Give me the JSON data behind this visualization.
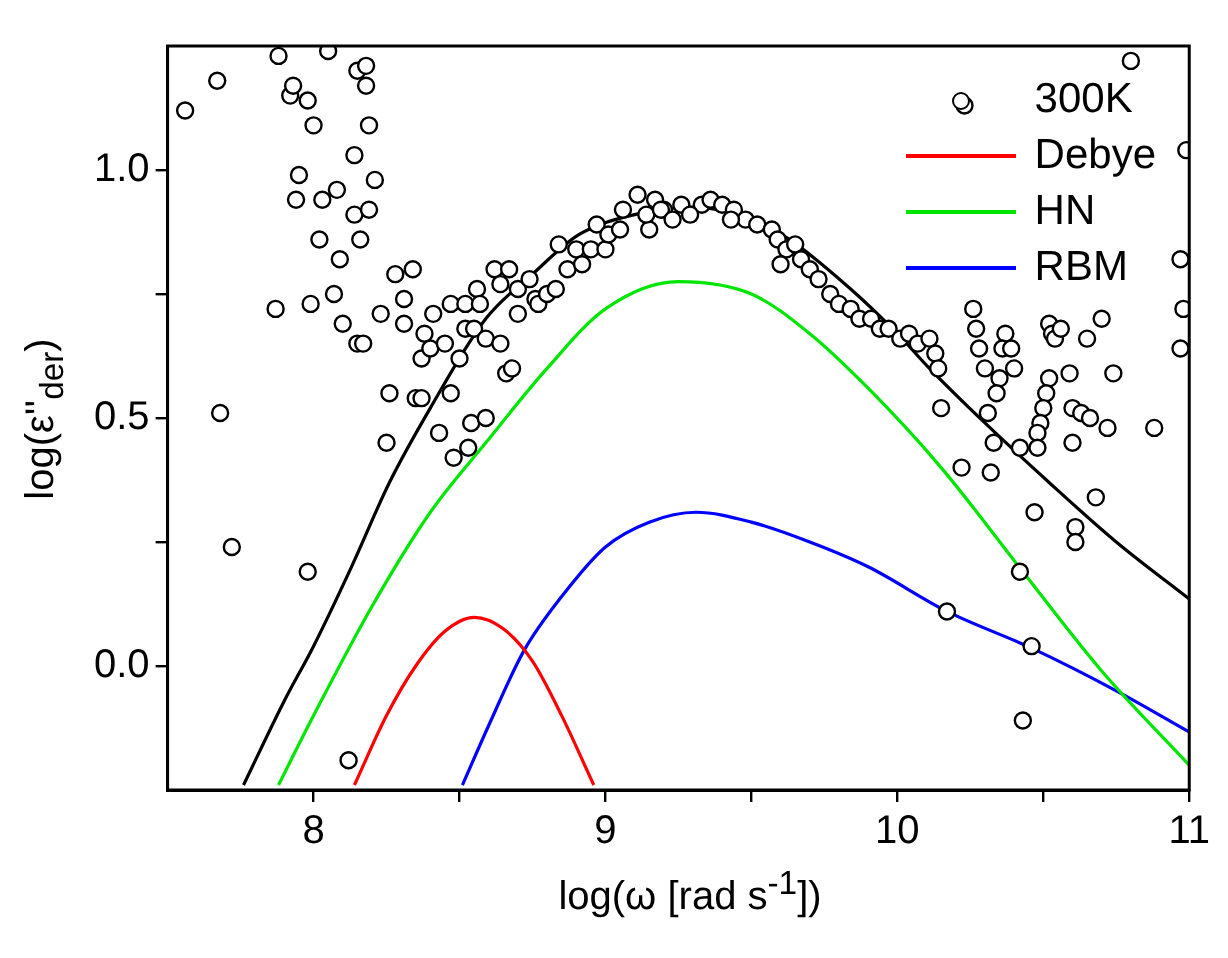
{
  "chart_data": {
    "type": "scatter",
    "xlabel": "log(ω [rad s$^{-1}$])",
    "ylabel": "log(ε''$_{der}$)",
    "xlim": [
      7.5,
      11
    ],
    "ylim": [
      -0.25,
      1.25
    ],
    "xticks": [
      8,
      {
        "value": 8.5,
        "label": null
      },
      9,
      {
        "value": 9.5,
        "label": null
      },
      10,
      {
        "value": 10.5,
        "label": null
      },
      11
    ],
    "yticks": [
      {
        "value": 0,
        "label": "0.0"
      },
      {
        "value": 0.25,
        "label": null
      },
      {
        "value": 0.5,
        "label": "0.5"
      },
      {
        "value": 0.75,
        "label": null
      },
      {
        "value": 1,
        "label": "1.0"
      }
    ],
    "legend": "top right",
    "series": [
      {
        "type": "line",
        "color": "#000000",
        "marker": "none",
        "x": [
          7.76,
          7.9,
          8.0,
          8.13,
          8.26,
          8.4,
          8.59,
          8.75,
          8.91,
          9.1,
          9.3,
          9.5,
          9.63,
          9.84,
          10.0,
          10.11,
          10.3,
          10.52,
          10.75,
          11.0
        ],
        "values": [
          -0.24,
          -0.07,
          0.04,
          0.2,
          0.37,
          0.52,
          0.7,
          0.79,
          0.87,
          0.91,
          0.925,
          0.9,
          0.86,
          0.76,
          0.67,
          0.6,
          0.49,
          0.37,
          0.25,
          0.135
        ]
      },
      {
        "type": "line",
        "name": "Debye",
        "color": "#ff0000",
        "marker": "none",
        "x": [
          8.14,
          8.25,
          8.35,
          8.45,
          8.55,
          8.65,
          8.75,
          8.85,
          8.96
        ],
        "values": [
          -0.24,
          -0.1,
          0.0,
          0.07,
          0.098,
          0.075,
          0.01,
          -0.1,
          -0.24
        ]
      },
      {
        "type": "line",
        "name": "HN",
        "color": "#00e600",
        "marker": "none",
        "x": [
          7.88,
          8.0,
          8.2,
          8.4,
          8.59,
          8.8,
          9.0,
          9.25,
          9.5,
          9.7,
          9.9,
          10.15,
          10.43,
          10.7,
          11.0
        ],
        "values": [
          -0.24,
          -0.1,
          0.12,
          0.31,
          0.45,
          0.6,
          0.72,
          0.775,
          0.75,
          0.67,
          0.56,
          0.4,
          0.19,
          -0.01,
          -0.2
        ]
      },
      {
        "type": "line",
        "name": "RBM",
        "color": "#0000ff",
        "marker": "none",
        "x": [
          8.51,
          8.6,
          8.72,
          8.85,
          9.0,
          9.15,
          9.31,
          9.5,
          9.7,
          9.9,
          10.17,
          10.46,
          10.75,
          11.0
        ],
        "values": [
          -0.24,
          -0.12,
          0.03,
          0.14,
          0.24,
          0.29,
          0.31,
          0.29,
          0.25,
          0.2,
          0.11,
          0.036,
          -0.05,
          -0.133
        ]
      },
      {
        "type": "scatter",
        "name": "300K",
        "color": "#000000",
        "marker": "circle",
        "x": [
          7.56,
          7.67,
          7.68,
          7.87,
          7.88,
          7.92,
          7.93,
          7.98,
          8.0,
          8.05,
          7.95,
          7.94,
          8.02,
          8.03,
          8.08,
          8.09,
          7.99,
          8.07,
          8.1,
          8.14,
          8.14,
          8.16,
          8.19,
          8.21,
          8.19,
          8.15,
          8.18,
          8.18,
          8.15,
          8.17,
          8.23,
          8.26,
          8.25,
          8.28,
          8.31,
          8.34,
          8.31,
          8.35,
          8.37,
          8.37,
          8.38,
          8.4,
          8.41,
          8.45,
          8.43,
          8.48,
          8.53,
          8.47,
          8.5,
          8.54,
          8.59,
          8.47,
          8.52,
          8.52,
          8.56,
          8.57,
          8.55,
          8.59,
          8.62,
          8.67,
          8.64,
          8.66,
          8.68,
          8.7,
          8.64,
          8.7,
          8.74,
          8.76,
          8.77,
          8.8,
          8.83,
          8.84,
          8.87,
          8.9,
          8.92,
          8.95,
          8.97,
          9.0,
          9.01,
          9.05,
          9.06,
          9.11,
          9.15,
          9.17,
          9.14,
          9.2,
          9.19,
          9.26,
          9.33,
          9.36,
          9.4,
          9.44,
          9.48,
          9.52,
          9.57,
          9.59,
          9.62,
          9.65,
          9.67,
          9.7,
          9.73,
          9.77,
          9.8,
          9.84,
          9.87,
          9.91,
          9.94,
          9.97,
          10.01,
          10.04,
          10.07,
          10.11,
          10.13,
          10.14,
          9.23,
          9.29,
          9.43,
          9.6,
          10.8,
          10.23,
          10.99,
          10.97,
          10.98,
          10.97,
          10.26,
          10.27,
          10.37,
          10.28,
          10.36,
          10.39,
          10.4,
          10.3,
          10.35,
          10.34,
          10.31,
          10.52,
          10.53,
          10.54,
          10.56,
          10.7,
          10.65,
          10.59,
          10.74,
          10.52,
          10.51,
          10.5,
          10.49,
          10.48,
          10.48,
          10.42,
          10.33,
          10.15,
          10.22,
          10.32,
          10.6,
          10.63,
          10.66,
          10.72,
          10.6,
          10.88,
          10.68,
          10.47,
          10.61,
          10.61,
          10.42,
          10.17,
          10.46,
          10.43,
          7.72,
          7.98,
          8.12
        ],
        "values": [
          1.12,
          1.18,
          0.51,
          0.72,
          1.23,
          1.15,
          1.17,
          1.14,
          1.09,
          1.24,
          0.99,
          0.94,
          0.86,
          0.94,
          0.96,
          0.82,
          0.73,
          0.75,
          0.69,
          1.03,
          0.91,
          0.86,
          0.92,
          0.98,
          1.09,
          1.2,
          1.21,
          1.17,
          0.65,
          0.65,
          0.71,
          0.55,
          0.45,
          0.79,
          0.74,
          0.8,
          0.69,
          0.54,
          0.54,
          0.62,
          0.67,
          0.64,
          0.71,
          0.65,
          0.47,
          0.42,
          0.44,
          0.55,
          0.62,
          0.49,
          0.5,
          0.73,
          0.73,
          0.68,
          0.76,
          0.73,
          0.68,
          0.66,
          0.8,
          0.8,
          0.65,
          0.59,
          0.6,
          0.71,
          0.77,
          0.76,
          0.78,
          0.74,
          0.73,
          0.75,
          0.76,
          0.85,
          0.8,
          0.84,
          0.81,
          0.84,
          0.89,
          0.84,
          0.87,
          0.88,
          0.92,
          0.95,
          0.88,
          0.94,
          0.91,
          0.92,
          0.92,
          0.93,
          0.93,
          0.94,
          0.93,
          0.92,
          0.9,
          0.89,
          0.88,
          0.86,
          0.84,
          0.85,
          0.82,
          0.8,
          0.78,
          0.75,
          0.73,
          0.72,
          0.7,
          0.7,
          0.68,
          0.68,
          0.66,
          0.67,
          0.65,
          0.66,
          0.63,
          0.6,
          0.9,
          0.91,
          0.9,
          0.81,
          1.22,
          1.13,
          1.04,
          0.82,
          0.72,
          0.64,
          0.72,
          0.68,
          0.67,
          0.64,
          0.64,
          0.64,
          0.6,
          0.6,
          0.58,
          0.55,
          0.51,
          0.69,
          0.67,
          0.66,
          0.68,
          0.7,
          0.66,
          0.59,
          0.59,
          0.58,
          0.55,
          0.52,
          0.49,
          0.47,
          0.44,
          0.44,
          0.45,
          0.52,
          0.4,
          0.39,
          0.52,
          0.51,
          0.5,
          0.48,
          0.45,
          0.48,
          0.34,
          0.31,
          0.28,
          0.25,
          0.19,
          0.11,
          0.04,
          -0.11,
          0.24,
          0.19,
          -0.19
        ]
      }
    ]
  }
}
